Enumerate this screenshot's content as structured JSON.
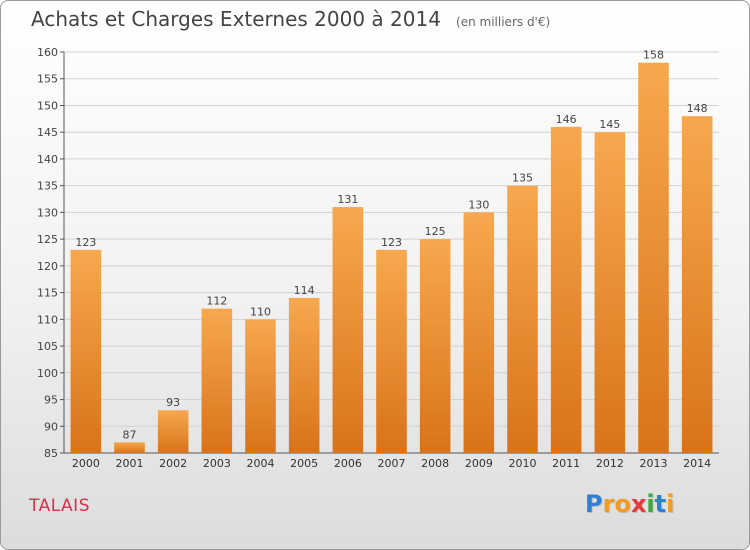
{
  "chart_data": {
    "type": "bar",
    "title": "Achats et Charges Externes 2000 à 2014",
    "subtitle": "(en milliers d'€)",
    "categories": [
      "2000",
      "2001",
      "2002",
      "2003",
      "2004",
      "2005",
      "2006",
      "2007",
      "2008",
      "2009",
      "2010",
      "2011",
      "2012",
      "2013",
      "2014"
    ],
    "values": [
      123,
      87,
      93,
      112,
      110,
      114,
      131,
      123,
      125,
      130,
      135,
      146,
      145,
      158,
      148
    ],
    "ylim": [
      85,
      160
    ],
    "yticks": [
      85,
      90,
      95,
      100,
      105,
      110,
      115,
      120,
      125,
      130,
      135,
      140,
      145,
      150,
      155,
      160
    ],
    "grid": true,
    "xlabel": "",
    "ylabel": "",
    "bar_color": "#f0892a",
    "bar_color_light": "#f7a84e",
    "bar_color_dark": "#d9731a"
  },
  "place_label": "TALAIS",
  "logo": {
    "letters": [
      "P",
      "r",
      "o",
      "x",
      "i",
      "t",
      "i"
    ],
    "colors": [
      "#2e7fd8",
      "#f29b1e",
      "#f29b1e",
      "#e43a3a",
      "#3aa83a",
      "#2e7fd8",
      "#f29b1e"
    ]
  }
}
